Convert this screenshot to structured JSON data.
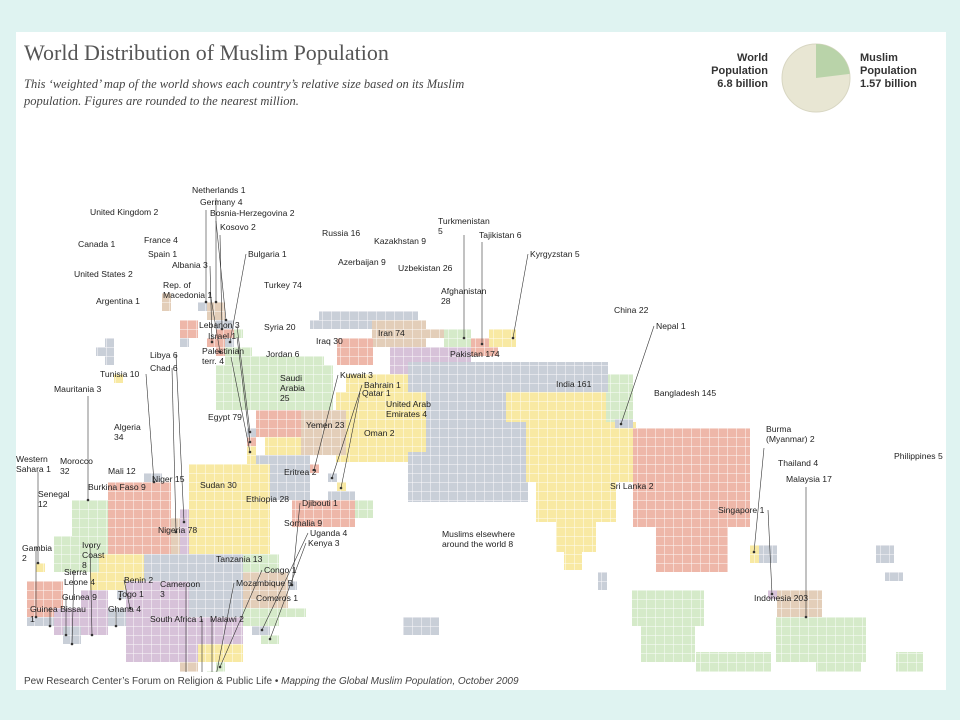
{
  "header": {
    "title": "World Distribution of Muslim Population",
    "subtitle": "This ‘weighted’ map of the world shows each country’s relative size based on its Muslim population. Figures are rounded to the nearest million."
  },
  "pie": {
    "world_label_1": "World",
    "world_label_2": "Population",
    "world_value": "6.8 billion",
    "muslim_label_1": "Muslim",
    "muslim_label_2": "Population",
    "muslim_value": "1.57 billion",
    "world_total": 6.8,
    "muslim_total": 1.57,
    "colors": {
      "world": "#e8e6d3",
      "muslim": "#b9d3a9"
    }
  },
  "colors": {
    "pink": "#eeb7a9",
    "yellow": "#f8e9a3",
    "green": "#d5eac9",
    "blue": "#c9cfd8",
    "tan": "#e3ceb9",
    "purple": "#d7c2d9",
    "grid": "#ffffff",
    "leader": "#333333"
  },
  "countries": [
    {
      "name": "Netherlands",
      "value": "1",
      "label": "Netherlands 1"
    },
    {
      "name": "Germany",
      "value": "4",
      "label": "Germany 4"
    },
    {
      "name": "Bosnia-Herzegovina",
      "value": "2",
      "label": "Bosnia-Herzegovina 2"
    },
    {
      "name": "United Kingdom",
      "value": "2",
      "label": "United Kingdom 2"
    },
    {
      "name": "Kosovo",
      "value": "2",
      "label": "Kosovo 2"
    },
    {
      "name": "France",
      "value": "4",
      "label": "France 4"
    },
    {
      "name": "Canada",
      "value": "1",
      "label": "Canada 1"
    },
    {
      "name": "Spain",
      "value": "1",
      "label": "Spain 1"
    },
    {
      "name": "Bulgaria",
      "value": "1",
      "label": "Bulgaria 1"
    },
    {
      "name": "Albania",
      "value": "3",
      "label": "Albania 3"
    },
    {
      "name": "United States",
      "value": "2",
      "label": "United States 2"
    },
    {
      "name": "Rep. of Macedonia",
      "value": "1",
      "label_1": "Rep. of",
      "label_2": "Macedonia 1"
    },
    {
      "name": "Argentina",
      "value": "1",
      "label": "Argentina 1"
    },
    {
      "name": "Russia",
      "value": "16",
      "label": "Russia 16"
    },
    {
      "name": "Kazakhstan",
      "value": "9",
      "label": "Kazakhstan 9"
    },
    {
      "name": "Turkmenistan",
      "value": "5",
      "label_1": "Turkmenistan",
      "label_2": "5"
    },
    {
      "name": "Tajikistan",
      "value": "6",
      "label": "Tajikistan 6"
    },
    {
      "name": "Kyrgyzstan",
      "value": "5",
      "label": "Kyrgyzstan 5"
    },
    {
      "name": "Azerbaijan",
      "value": "9",
      "label": "Azerbaijan 9"
    },
    {
      "name": "Uzbekistan",
      "value": "26",
      "label": "Uzbekistan 26"
    },
    {
      "name": "Turkey",
      "value": "74",
      "label": "Turkey 74"
    },
    {
      "name": "Afghanistan",
      "value": "28",
      "label_1": "Afghanistan",
      "label_2": "28"
    },
    {
      "name": "China",
      "value": "22",
      "label": "China 22"
    },
    {
      "name": "Lebanon",
      "value": "3",
      "label": "Lebanon 3"
    },
    {
      "name": "Syria",
      "value": "20",
      "label": "Syria 20"
    },
    {
      "name": "Israel",
      "value": "1",
      "label": "Israel 1"
    },
    {
      "name": "Iran",
      "value": "74",
      "label": "Iran 74"
    },
    {
      "name": "Nepal",
      "value": "1",
      "label": "Nepal 1"
    },
    {
      "name": "Iraq",
      "value": "30",
      "label": "Iraq 30"
    },
    {
      "name": "Palestinian terr.",
      "value": "4",
      "label_1": "Palestinian",
      "label_2": "terr. 4"
    },
    {
      "name": "Jordan",
      "value": "6",
      "label": "Jordan 6"
    },
    {
      "name": "Libya",
      "value": "6",
      "label": "Libya 6"
    },
    {
      "name": "Chad",
      "value": "6",
      "label": "Chad 6"
    },
    {
      "name": "Pakistan",
      "value": "174",
      "label": "Pakistan 174"
    },
    {
      "name": "Tunisia",
      "value": "10",
      "label": "Tunisia 10"
    },
    {
      "name": "Kuwait",
      "value": "3",
      "label": "Kuwait 3"
    },
    {
      "name": "Saudi Arabia",
      "value": "25",
      "label_1": "Saudi",
      "label_2": "Arabia",
      "label_3": "25"
    },
    {
      "name": "Bahrain",
      "value": "1",
      "label": "Bahrain 1"
    },
    {
      "name": "Qatar",
      "value": "1",
      "label": "Qatar 1"
    },
    {
      "name": "India",
      "value": "161",
      "label": "India 161"
    },
    {
      "name": "Mauritania",
      "value": "3",
      "label": "Mauritania 3"
    },
    {
      "name": "Bangladesh",
      "value": "145",
      "label": "Bangladesh 145"
    },
    {
      "name": "Egypt",
      "value": "79",
      "label": "Egypt 79"
    },
    {
      "name": "United Arab Emirates",
      "value": "4",
      "label_1": "United Arab",
      "label_2": "Emirates 4"
    },
    {
      "name": "Algeria",
      "value": "34",
      "label_1": "Algeria",
      "label_2": "34"
    },
    {
      "name": "Yemen",
      "value": "23",
      "label": "Yemen 23"
    },
    {
      "name": "Oman",
      "value": "2",
      "label": "Oman 2"
    },
    {
      "name": "Burma (Myanmar)",
      "value": "2",
      "label_1": "Burma",
      "label_2": "(Myanmar) 2"
    },
    {
      "name": "Western Sahara",
      "value": "1",
      "label_1": "Western",
      "label_2": "Sahara 1"
    },
    {
      "name": "Morocco",
      "value": "32",
      "label_1": "Morocco",
      "label_2": "32"
    },
    {
      "name": "Philippines",
      "value": "5",
      "label": "Philippines 5"
    },
    {
      "name": "Mali",
      "value": "12",
      "label": "Mali 12"
    },
    {
      "name": "Eritrea",
      "value": "2",
      "label": "Eritrea 2"
    },
    {
      "name": "Thailand",
      "value": "4",
      "label": "Thailand 4"
    },
    {
      "name": "Niger",
      "value": "15",
      "label": "Niger 15"
    },
    {
      "name": "Sudan",
      "value": "30",
      "label": "Sudan 30"
    },
    {
      "name": "Sri Lanka",
      "value": "2",
      "label": "Sri Lanka 2"
    },
    {
      "name": "Malaysia",
      "value": "17",
      "label": "Malaysia 17"
    },
    {
      "name": "Burkina Faso",
      "value": "9",
      "label": "Burkina Faso 9"
    },
    {
      "name": "Senegal",
      "value": "12",
      "label_1": "Senegal",
      "label_2": "12"
    },
    {
      "name": "Ethiopia",
      "value": "28",
      "label": "Ethiopia 28"
    },
    {
      "name": "Djibouti",
      "value": "1",
      "label": "Djibouti 1"
    },
    {
      "name": "Singapore",
      "value": "1",
      "label": "Singapore 1"
    },
    {
      "name": "Nigeria",
      "value": "78",
      "label": "Nigeria 78"
    },
    {
      "name": "Somalia",
      "value": "9",
      "label": "Somalia 9"
    },
    {
      "name": "Uganda",
      "value": "4",
      "label": "Uganda 4"
    },
    {
      "name": "Muslims elsewhere around the world",
      "value": "8",
      "label_1": "Muslims elsewhere",
      "label_2": "around the world 8"
    },
    {
      "name": "Gambia",
      "value": "2",
      "label_1": "Gambia",
      "label_2": "2"
    },
    {
      "name": "Ivory Coast",
      "value": "8",
      "label_1": "Ivory",
      "label_2": "Coast",
      "label_3": "8"
    },
    {
      "name": "Kenya",
      "value": "3",
      "label": "Kenya 3"
    },
    {
      "name": "Tanzania",
      "value": "13",
      "label": "Tanzania 13"
    },
    {
      "name": "Sierra Leone",
      "value": "4",
      "label_1": "Sierra",
      "label_2": "Leone 4"
    },
    {
      "name": "Congo",
      "value": "1",
      "label": "Congo 1"
    },
    {
      "name": "Benin",
      "value": "2",
      "label": "Benin 2"
    },
    {
      "name": "Cameroon",
      "value": "3",
      "label_1": "Cameroon",
      "label_2": "3"
    },
    {
      "name": "Mozambique",
      "value": "5",
      "label": "Mozambique 5"
    },
    {
      "name": "Guinea",
      "value": "9",
      "label": "Guinea 9"
    },
    {
      "name": "Togo",
      "value": "1",
      "label": "Togo 1"
    },
    {
      "name": "Comoros",
      "value": "1",
      "label": "Comoros 1"
    },
    {
      "name": "Indonesia",
      "value": "203",
      "label": "Indonesia 203"
    },
    {
      "name": "Guinea Bissau",
      "value": "1",
      "label_1": "Guinea Bissau",
      "label_2": "1"
    },
    {
      "name": "Ghana",
      "value": "4",
      "label": "Ghana 4"
    },
    {
      "name": "South Africa",
      "value": "1",
      "label": "South Africa 1"
    },
    {
      "name": "Malawi",
      "value": "2",
      "label": "Malawi 2"
    }
  ],
  "footer": {
    "source_org": "Pew Research Center’s Forum on Religion & Public Life",
    "bullet": " • ",
    "source_pub": "Mapping the Global Muslim Population, October 2009"
  }
}
